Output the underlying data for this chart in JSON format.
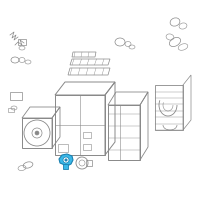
{
  "bg_color": "#ffffff",
  "line_color": "#aaaaaa",
  "dark_line": "#888888",
  "highlight_color": "#3ab8e8",
  "highlight_edge": "#1a80b0",
  "fig_width": 2.0,
  "fig_height": 2.0,
  "dpi": 100
}
